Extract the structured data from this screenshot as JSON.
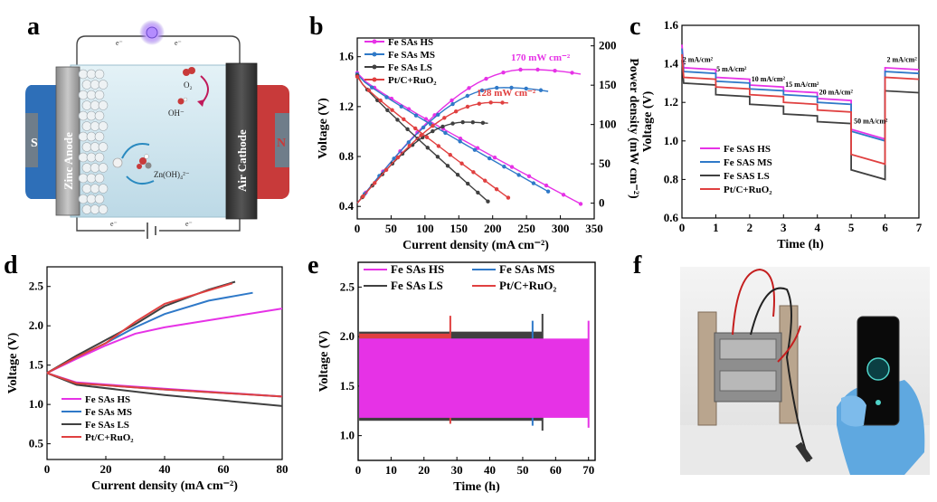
{
  "panel_labels": {
    "a": "a",
    "b": "b",
    "c": "c",
    "d": "d",
    "e": "e",
    "f": "f"
  },
  "panel_a": {
    "anode_label": "Zinc Anode",
    "cathode_label": "Air Cathode",
    "o2": "O₂",
    "oh": "OH⁻",
    "zincate": "Zn(OH)₄²⁻",
    "electron": "e⁻",
    "plus": "N",
    "minus": "S",
    "colors": {
      "anode_magnet": "#2e6fb8",
      "cathode_magnet": "#c83a3a",
      "electrolyte": "#cfe6ef"
    }
  },
  "colors": {
    "HS": "#e632e6",
    "MS": "#2f79c8",
    "LS": "#404040",
    "PtC": "#e04040"
  },
  "chart_data": [
    {
      "id": "b",
      "type": "line",
      "xlabel": "Current density (mA cm⁻²)",
      "ylabel": "Voltage (V)",
      "y2label": "Power density (mW cm⁻²)",
      "xlim": [
        0,
        350
      ],
      "ylim": [
        0.3,
        1.75
      ],
      "y2lim": [
        -20,
        210
      ],
      "xticks": [
        0,
        50,
        100,
        150,
        200,
        250,
        300,
        350
      ],
      "yticks": [
        0.4,
        0.8,
        1.2,
        1.6
      ],
      "y2ticks": [
        0,
        50,
        100,
        150,
        200
      ],
      "legend": [
        "Fe SAs HS",
        "Fe SAs MS",
        "Fe SAs LS",
        "Pt/C+RuO₂"
      ],
      "annotations": [
        "170 mW cm⁻²",
        "128 mW cm⁻²"
      ],
      "series": [
        {
          "name": "Fe SAs HS",
          "x_max": 330,
          "v_start": 1.47,
          "v_end": 0.42,
          "p_peak": 170,
          "p_peak_x": 250
        },
        {
          "name": "Fe SAs MS",
          "x_max": 282,
          "v_start": 1.46,
          "v_end": 0.52,
          "p_peak": 147,
          "p_peak_x": 215
        },
        {
          "name": "Fe SAs LS",
          "x_max": 193,
          "v_start": 1.45,
          "v_end": 0.44,
          "p_peak": 103,
          "p_peak_x": 160
        },
        {
          "name": "Pt/C+RuO₂",
          "x_max": 223,
          "v_start": 1.44,
          "v_end": 0.47,
          "p_peak": 128,
          "p_peak_x": 200
        }
      ]
    },
    {
      "id": "c",
      "type": "line",
      "xlabel": "Time (h)",
      "ylabel": "Voltage (V)",
      "xlim": [
        0,
        7
      ],
      "ylim": [
        0.6,
        1.6
      ],
      "xticks": [
        0,
        1,
        2,
        3,
        4,
        5,
        6,
        7
      ],
      "yticks": [
        0.6,
        0.8,
        1.0,
        1.2,
        1.4,
        1.6
      ],
      "legend": [
        "Fe SAS HS",
        "Fe SAS MS",
        "Fe SAS LS",
        "Pt/C+RuO₂"
      ],
      "step_labels": [
        "2 mA/cm²",
        "5 mA/cm²",
        "10 mA/cm²",
        "15 mA/cm²",
        "20 mA/cm²",
        "50 mA/cm²",
        "2 mA/cm²"
      ],
      "series": [
        {
          "name": "Fe SAS HS",
          "levels": [
            1.38,
            1.33,
            1.29,
            1.26,
            1.22,
            1.06,
            1.38
          ]
        },
        {
          "name": "Fe SAS MS",
          "levels": [
            1.36,
            1.31,
            1.27,
            1.24,
            1.2,
            1.05,
            1.36
          ]
        },
        {
          "name": "Fe SAS LS",
          "levels": [
            1.3,
            1.24,
            1.19,
            1.14,
            1.1,
            0.85,
            1.26
          ]
        },
        {
          "name": "Pt/C+RuO₂",
          "levels": [
            1.33,
            1.28,
            1.24,
            1.2,
            1.16,
            0.93,
            1.33
          ]
        }
      ]
    },
    {
      "id": "d",
      "type": "line",
      "xlabel": "Current density (mA cm⁻²)",
      "ylabel": "Voltage (V)",
      "xlim": [
        0,
        80
      ],
      "ylim": [
        0.3,
        2.75
      ],
      "xticks": [
        0,
        20,
        40,
        60,
        80
      ],
      "yticks": [
        0.5,
        1.0,
        1.5,
        2.0,
        2.5
      ],
      "legend": [
        "Fe SAs HS",
        "Fe SAs MS",
        "Fe SAs LS",
        "Pt/C+RuO₂"
      ],
      "series": [
        {
          "name": "Fe SAs HS",
          "charge": [
            [
              0,
              1.4
            ],
            [
              10,
              1.58
            ],
            [
              20,
              1.75
            ],
            [
              30,
              1.9
            ],
            [
              40,
              1.98
            ],
            [
              60,
              2.1
            ],
            [
              80,
              2.22
            ]
          ],
          "discharge": [
            [
              0,
              1.4
            ],
            [
              10,
              1.28
            ],
            [
              40,
              1.2
            ],
            [
              80,
              1.1
            ]
          ]
        },
        {
          "name": "Fe SAs MS",
          "charge": [
            [
              0,
              1.4
            ],
            [
              10,
              1.6
            ],
            [
              20,
              1.78
            ],
            [
              30,
              1.98
            ],
            [
              40,
              2.15
            ],
            [
              55,
              2.32
            ],
            [
              70,
              2.42
            ]
          ],
          "discharge": [
            [
              0,
              1.4
            ],
            [
              10,
              1.27
            ],
            [
              40,
              1.19
            ],
            [
              80,
              1.1
            ]
          ]
        },
        {
          "name": "Fe SAs LS",
          "charge": [
            [
              0,
              1.4
            ],
            [
              10,
              1.62
            ],
            [
              20,
              1.82
            ],
            [
              30,
              2.02
            ],
            [
              40,
              2.25
            ],
            [
              55,
              2.46
            ],
            [
              64,
              2.56
            ]
          ],
          "discharge": [
            [
              0,
              1.4
            ],
            [
              10,
              1.25
            ],
            [
              40,
              1.12
            ],
            [
              80,
              0.98
            ]
          ]
        },
        {
          "name": "Pt/C+RuO₂",
          "charge": [
            [
              0,
              1.4
            ],
            [
              10,
              1.6
            ],
            [
              20,
              1.78
            ],
            [
              30,
              2.05
            ],
            [
              40,
              2.28
            ],
            [
              55,
              2.45
            ],
            [
              63,
              2.54
            ]
          ],
          "discharge": [
            [
              0,
              1.4
            ],
            [
              10,
              1.27
            ],
            [
              40,
              1.19
            ],
            [
              80,
              1.1
            ]
          ]
        }
      ]
    },
    {
      "id": "e",
      "type": "area",
      "xlabel": "Time (h)",
      "ylabel": "Voltage (V)",
      "xlim": [
        0,
        72
      ],
      "ylim": [
        0.75,
        2.75
      ],
      "xticks": [
        0,
        10,
        20,
        30,
        40,
        50,
        60,
        70
      ],
      "yticks": [
        1.0,
        1.5,
        2.0,
        2.5
      ],
      "legend": [
        "Fe SAs HS",
        "Fe SAs MS",
        "Fe SAs LS",
        "Pt/C+RuO₂"
      ],
      "series": [
        {
          "name": "Fe SAs LS",
          "x_end": 56,
          "low": 1.15,
          "high": 2.05
        },
        {
          "name": "Pt/C+RuO₂",
          "x_end": 28,
          "low": 1.22,
          "high": 2.03
        },
        {
          "name": "Fe SAs MS",
          "x_end": 53,
          "low": 1.2,
          "high": 1.98
        },
        {
          "name": "Fe SAs HS",
          "x_end": 70,
          "low": 1.18,
          "high": 1.98
        }
      ]
    }
  ]
}
